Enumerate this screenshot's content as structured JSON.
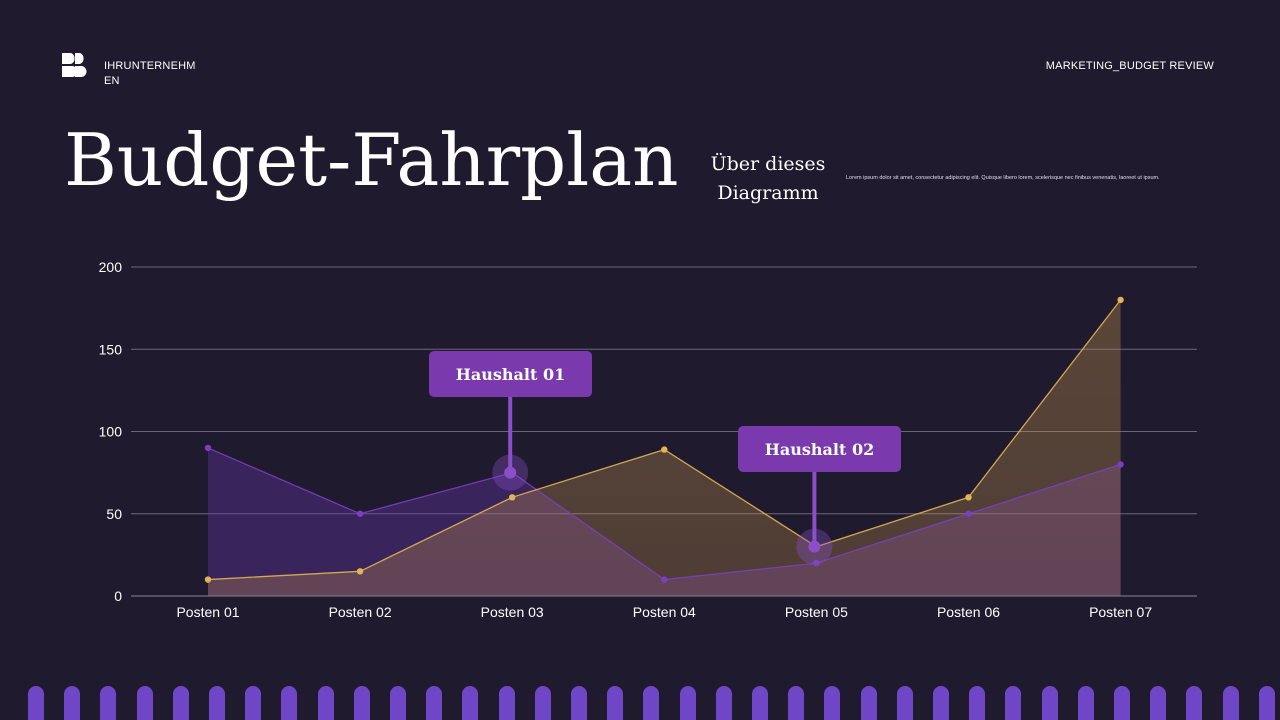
{
  "header": {
    "company": "IHRUNTERNEHMEN",
    "section": "MARKETING_BUDGET REVIEW"
  },
  "title": "Budget-Fahrplan",
  "about": {
    "heading": "Über dieses Diagramm",
    "text": "Lorem ipsum dolor sit amet, consectetur adipiscing elit. Quisque libero lorem, scelerisque nec finibus venenatis, laoreet ut ipsum."
  },
  "colors": {
    "background": "#1f1a2e",
    "purple": "#7a3fc0",
    "gold": "#e3b452",
    "callout": "#7a3aad",
    "bars": "#6f47c6"
  },
  "chart_data": {
    "type": "area",
    "title": "",
    "xlabel": "",
    "ylabel": "",
    "categories": [
      "Posten 01",
      "Posten 02",
      "Posten 03",
      "Posten 04",
      "Posten 05",
      "Posten 06",
      "Posten 07"
    ],
    "series": [
      {
        "name": "Haushalt 01",
        "color": "#7a3fc0",
        "values": [
          90,
          50,
          75,
          10,
          20,
          50,
          80
        ]
      },
      {
        "name": "Haushalt 02",
        "color": "#e3b452",
        "values": [
          10,
          15,
          60,
          89,
          30,
          60,
          180
        ]
      }
    ],
    "ylim": [
      0,
      200
    ],
    "yticks": [
      0,
      50,
      100,
      150,
      200
    ],
    "grid": true,
    "annotations": [
      {
        "label": "Haushalt 01",
        "category": "Posten 03",
        "value": 75
      },
      {
        "label": "Haushalt 02",
        "category": "Posten 05",
        "value": 30
      }
    ]
  }
}
